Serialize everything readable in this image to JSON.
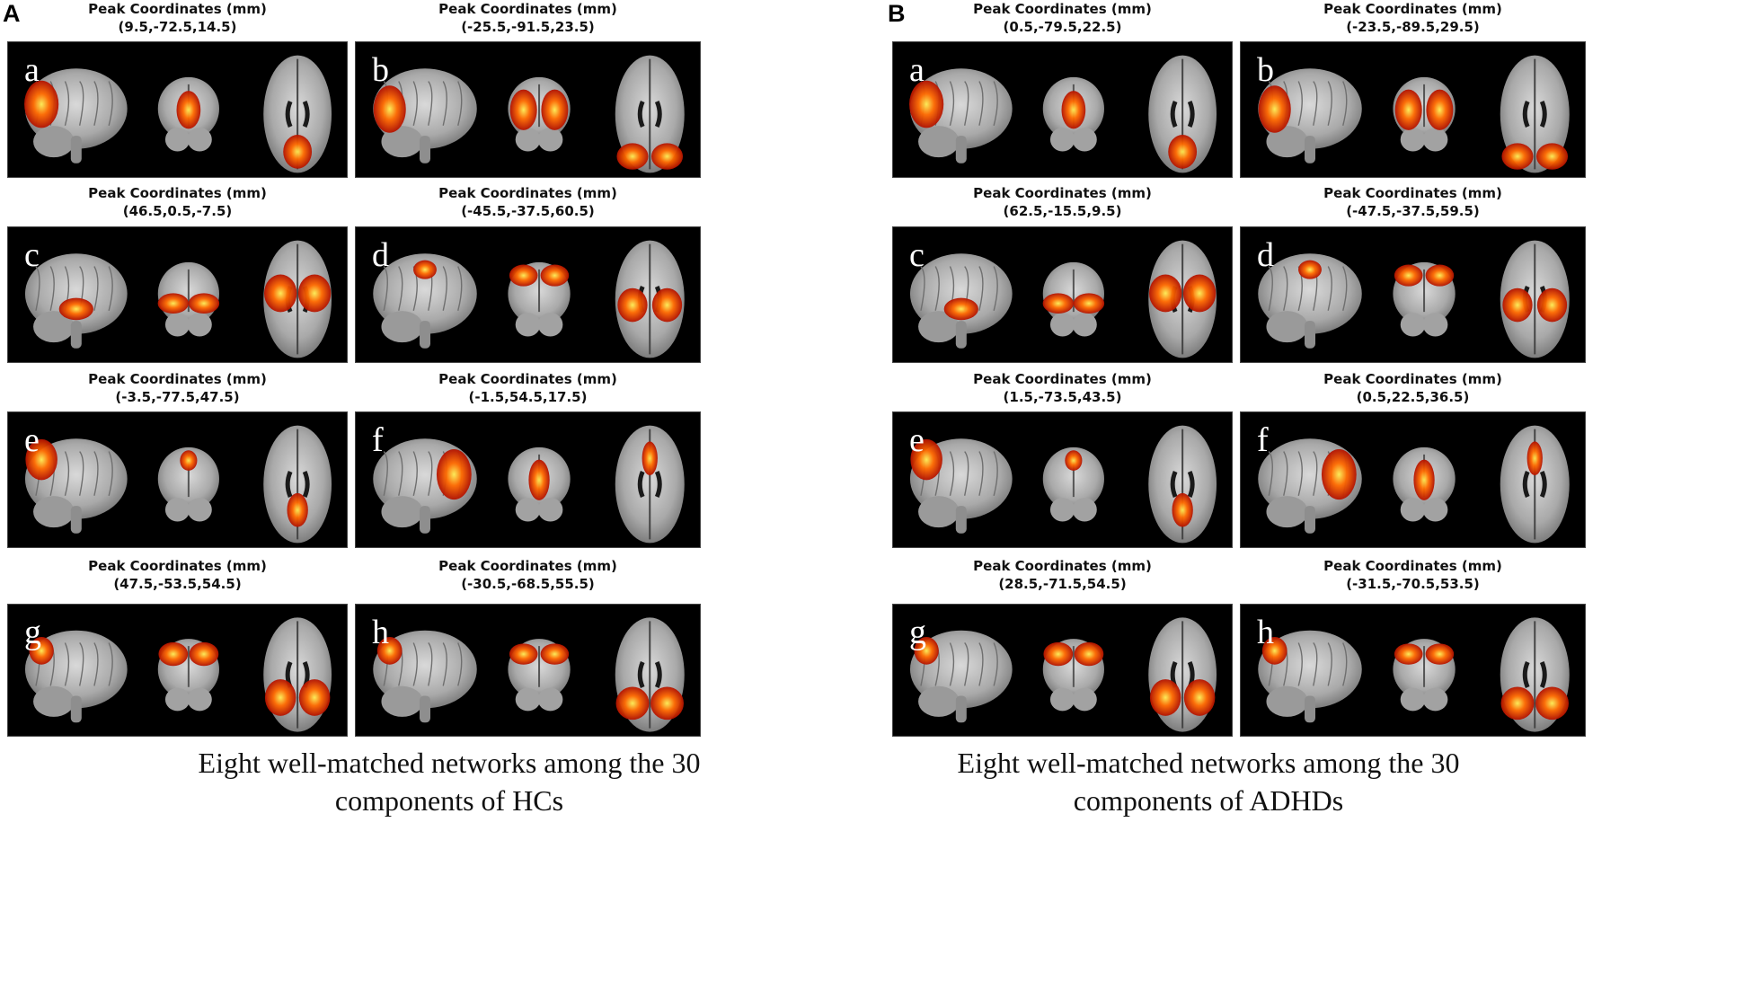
{
  "sections": [
    {
      "label": "A",
      "caption": [
        "Eight well-matched networks among the 30",
        "components of HCs"
      ],
      "panels": [
        {
          "letter": "a",
          "title": "Peak Coordinates (mm)",
          "coords": "(9.5,-72.5,14.5)"
        },
        {
          "letter": "b",
          "title": "Peak Coordinates (mm)",
          "coords": "(-25.5,-91.5,23.5)"
        },
        {
          "letter": "c",
          "title": "Peak Coordinates (mm)",
          "coords": "(46.5,0.5,-7.5)"
        },
        {
          "letter": "d",
          "title": "Peak Coordinates (mm)",
          "coords": "(-45.5,-37.5,60.5)"
        },
        {
          "letter": "e",
          "title": "Peak Coordinates (mm)",
          "coords": "(-3.5,-77.5,47.5)"
        },
        {
          "letter": "f",
          "title": "Peak Coordinates (mm)",
          "coords": "(-1.5,54.5,17.5)"
        },
        {
          "letter": "g",
          "title": "Peak Coordinates (mm)",
          "coords": "(47.5,-53.5,54.5)"
        },
        {
          "letter": "h",
          "title": "Peak Coordinates (mm)",
          "coords": "(-30.5,-68.5,55.5)"
        }
      ]
    },
    {
      "label": "B",
      "caption": [
        "Eight well-matched networks among the 30",
        "components of ADHDs"
      ],
      "panels": [
        {
          "letter": "a",
          "title": "Peak Coordinates (mm)",
          "coords": "(0.5,-79.5,22.5)"
        },
        {
          "letter": "b",
          "title": "Peak Coordinates (mm)",
          "coords": "(-23.5,-89.5,29.5)"
        },
        {
          "letter": "c",
          "title": "Peak Coordinates (mm)",
          "coords": "(62.5,-15.5,9.5)"
        },
        {
          "letter": "d",
          "title": "Peak Coordinates (mm)",
          "coords": "(-47.5,-37.5,59.5)"
        },
        {
          "letter": "e",
          "title": "Peak Coordinates (mm)",
          "coords": "(1.5,-73.5,43.5)"
        },
        {
          "letter": "f",
          "title": "Peak Coordinates (mm)",
          "coords": "(0.5,22.5,36.5)"
        },
        {
          "letter": "g",
          "title": "Peak Coordinates (mm)",
          "coords": "(28.5,-71.5,54.5)"
        },
        {
          "letter": "h",
          "title": "Peak Coordinates (mm)",
          "coords": "(-31.5,-70.5,53.5)"
        }
      ]
    }
  ],
  "colors": {
    "background": "#000000",
    "brain_gray": "#b8b8b8",
    "activation_hot": "#ffee55",
    "activation_mid": "#ff6a00",
    "activation_low": "#b31200"
  }
}
